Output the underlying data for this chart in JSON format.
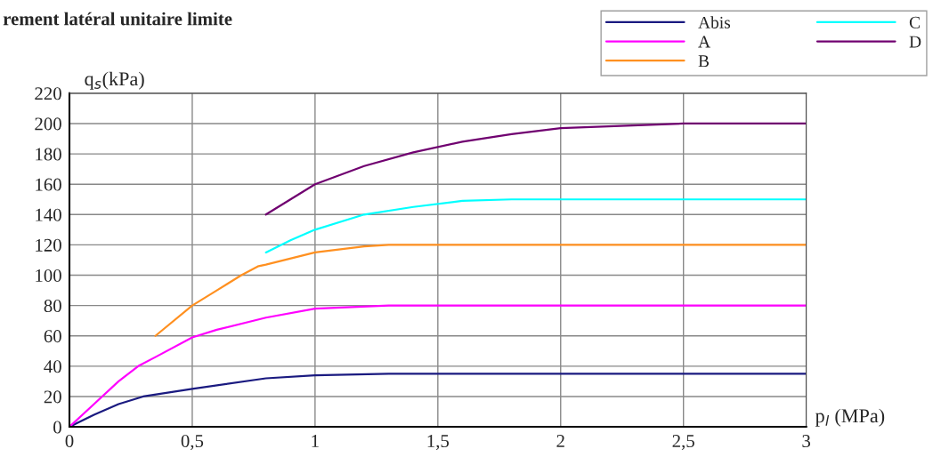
{
  "chart_data": {
    "type": "line",
    "title": "rement latéral unitaire limite",
    "xlabel": "p$_{l}$ (MPa)",
    "ylabel": "q$_{s}$(kPa)",
    "xlim": [
      0,
      3
    ],
    "ylim": [
      0,
      220
    ],
    "xticks": [
      0,
      {
        "value": 0.5,
        "label": "0,5"
      },
      1,
      {
        "value": 1.5,
        "label": "1,5"
      },
      2,
      {
        "value": 2.5,
        "label": "2,5"
      },
      3
    ],
    "yticks": [
      0,
      20,
      40,
      60,
      80,
      100,
      120,
      140,
      160,
      180,
      200,
      220
    ],
    "grid": true,
    "legend": "top right",
    "marker": "none",
    "line_style": "solid",
    "series": [
      {
        "name": "Abis",
        "color": "#1a1a80",
        "x": [
          0,
          0.1,
          0.2,
          0.3,
          0.5,
          0.8,
          1,
          1.3,
          3
        ],
        "values": [
          0,
          8,
          15,
          20,
          25,
          32,
          34,
          35,
          35
        ]
      },
      {
        "name": "A",
        "color": "#ff00ff",
        "x": [
          0,
          0.1,
          0.2,
          0.28,
          0.35,
          0.5,
          0.6,
          0.8,
          1,
          1.3,
          3
        ],
        "values": [
          0,
          15,
          30,
          40,
          46,
          59,
          64,
          72,
          78,
          80,
          80
        ]
      },
      {
        "name": "B",
        "color": "#ff9020",
        "x": [
          0.35,
          0.5,
          0.6,
          0.7,
          0.77,
          0.8,
          1,
          1.2,
          1.3,
          1.5,
          3
        ],
        "values": [
          60,
          80,
          90,
          100,
          106,
          107,
          115,
          119,
          120,
          120,
          120
        ]
      },
      {
        "name": "C",
        "color": "#00ffff",
        "x": [
          0.8,
          0.9,
          1,
          1.2,
          1.4,
          1.6,
          1.8,
          3
        ],
        "values": [
          115,
          123,
          130,
          140,
          145,
          149,
          150,
          150
        ]
      },
      {
        "name": "D",
        "color": "#700070",
        "x": [
          0.8,
          0.9,
          1,
          1.2,
          1.4,
          1.6,
          1.8,
          2,
          2.5,
          3
        ],
        "values": [
          140,
          150,
          160,
          172,
          181,
          188,
          193,
          197,
          200,
          200
        ]
      }
    ]
  }
}
